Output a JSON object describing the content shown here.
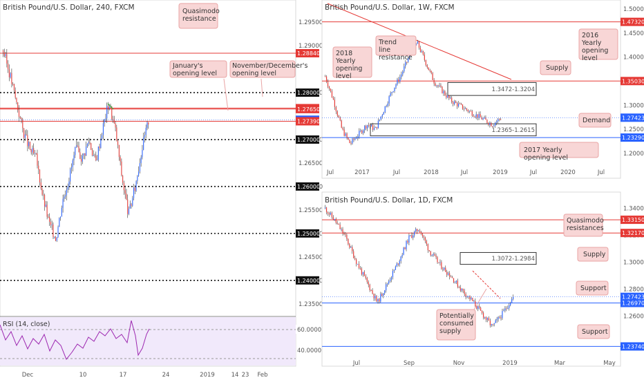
{
  "layout": {
    "page_title": ""
  },
  "chart_data": [
    {
      "type": "candlestick",
      "title": "British Pound/U.S. Dollar, 240, FXCM",
      "y_ticks": [
        "1.29500",
        "1.29000",
        "1.28000",
        "1.27000",
        "1.26500",
        "1.26000",
        "1.25500",
        "1.25000",
        "1.24500",
        "1.24000",
        "1.23500"
      ],
      "y_tick_values": [
        1.295,
        1.29,
        1.28,
        1.27,
        1.265,
        1.26,
        1.255,
        1.25,
        1.245,
        1.24,
        1.235
      ],
      "ylim": [
        1.2332,
        1.2965
      ],
      "x_ticks": [
        "Dec",
        "10",
        "17",
        "24",
        "2019",
        "14",
        "23",
        "Feb"
      ],
      "price_labels": [
        {
          "text": "1.28840",
          "value": 1.2884,
          "color": "#e53935"
        },
        {
          "text": "1.28000",
          "value": 1.28,
          "color": "#111111"
        },
        {
          "text": "1.27670",
          "value": 1.2767,
          "color": "#e53935"
        },
        {
          "text": "1.27650",
          "value": 1.2765,
          "color": "#e53935"
        },
        {
          "text": "1.27423",
          "value": 1.27423,
          "color": "#2962ff"
        },
        {
          "text": "1.27390",
          "value": 1.2739,
          "color": "#e53935"
        },
        {
          "text": "1.27000",
          "value": 1.27,
          "color": "#111111"
        },
        {
          "text": "1.26000",
          "value": 1.26,
          "color": "#111111"
        },
        {
          "text": "1.25000",
          "value": 1.25,
          "color": "#111111"
        },
        {
          "text": "1.24000",
          "value": 1.24,
          "color": "#111111"
        }
      ],
      "levels": [
        {
          "value": 1.2884,
          "style": "solid",
          "color": "#e53935"
        },
        {
          "value": 1.2767,
          "style": "solid",
          "color": "#e53935"
        },
        {
          "value": 1.2765,
          "style": "solid",
          "color": "#e53935"
        },
        {
          "value": 1.2739,
          "style": "solid",
          "color": "#e53935"
        },
        {
          "value": 1.28,
          "style": "dotted",
          "color": "#111111"
        },
        {
          "value": 1.27,
          "style": "dotted",
          "color": "#111111"
        },
        {
          "value": 1.26,
          "style": "dotted",
          "color": "#111111"
        },
        {
          "value": 1.25,
          "style": "dotted",
          "color": "#111111"
        },
        {
          "value": 1.24,
          "style": "dotted",
          "color": "#111111"
        }
      ],
      "annotations": [
        "Quasimodo resistance",
        "January's opening level",
        "November/December's opening level"
      ],
      "rsi": {
        "label": "RSI (14, close)",
        "ticks": [
          "60.0000",
          "40.0000"
        ]
      },
      "last_price": 1.27423
    },
    {
      "type": "candlestick",
      "title": "British Pound/U.S. Dollar, 1W, FXCM",
      "y_ticks": [
        "1.50000",
        "1.45000",
        "1.40000",
        "1.35000",
        "1.30000",
        "1.25000",
        "1.20000"
      ],
      "y_tick_values": [
        1.5,
        1.45,
        1.4,
        1.35,
        1.3,
        1.25,
        1.2
      ],
      "ylim": [
        1.18,
        1.51
      ],
      "x_ticks": [
        "Jul",
        "2017",
        "Jul",
        "2018",
        "Jul",
        "2019",
        "Jul",
        "2020",
        "Jul"
      ],
      "price_labels": [
        {
          "text": "1.47320",
          "value": 1.4732,
          "color": "#e53935"
        },
        {
          "text": "1.35030",
          "value": 1.3503,
          "color": "#e53935"
        },
        {
          "text": "1.27423",
          "value": 1.27423,
          "color": "#2962ff"
        },
        {
          "text": "1.23290",
          "value": 1.2329,
          "color": "#2962ff"
        }
      ],
      "levels": [
        {
          "value": 1.4732,
          "style": "solid",
          "color": "#e53935"
        },
        {
          "value": 1.3503,
          "style": "solid",
          "color": "#e53935"
        },
        {
          "value": 1.2329,
          "style": "solid",
          "color": "#2962ff"
        }
      ],
      "zones": [
        {
          "label": "1.3472-1.3204",
          "top": 1.3472,
          "bottom": 1.3204
        },
        {
          "label": "1.2365-1.2615",
          "top": 1.2615,
          "bottom": 1.2365
        }
      ],
      "annotations": [
        "Trend line resistance",
        "2018 Yearly opening level",
        "2016 Yearly opening level",
        "Supply",
        "Demand",
        "2017 Yearly opening level"
      ],
      "last_price": 1.27423
    },
    {
      "type": "candlestick",
      "title": "British Pound/U.S. Dollar, 1D, FXCM",
      "y_ticks": [
        "1.34000",
        "1.32000",
        "1.30000",
        "1.28000",
        "1.26000"
      ],
      "y_tick_values": [
        1.34,
        1.32,
        1.3,
        1.28,
        1.26
      ],
      "ylim": [
        1.233,
        1.349
      ],
      "x_ticks": [
        "Jul",
        "Sep",
        "Nov",
        "2019",
        "Mar",
        "May"
      ],
      "price_labels": [
        {
          "text": "1.33150",
          "value": 1.3315,
          "color": "#e53935"
        },
        {
          "text": "1.32170",
          "value": 1.3217,
          "color": "#e53935"
        },
        {
          "text": "1.27423",
          "value": 1.27423,
          "color": "#2962ff"
        },
        {
          "text": "1.26970",
          "value": 1.2697,
          "color": "#2962ff"
        },
        {
          "text": "1.23740",
          "value": 1.2374,
          "color": "#2962ff"
        }
      ],
      "levels": [
        {
          "value": 1.3315,
          "style": "solid",
          "color": "#e53935"
        },
        {
          "value": 1.3217,
          "style": "solid",
          "color": "#e53935"
        },
        {
          "value": 1.2697,
          "style": "solid",
          "color": "#2962ff"
        },
        {
          "value": 1.2374,
          "style": "solid",
          "color": "#2962ff"
        }
      ],
      "zones": [
        {
          "label": "1.3072-1.2984",
          "top": 1.3072,
          "bottom": 1.2984
        }
      ],
      "annotations": [
        "Quasimodo resistances",
        "Supply",
        "Support",
        "Potentially consumed supply",
        "Support"
      ],
      "last_price": 1.27423
    }
  ]
}
